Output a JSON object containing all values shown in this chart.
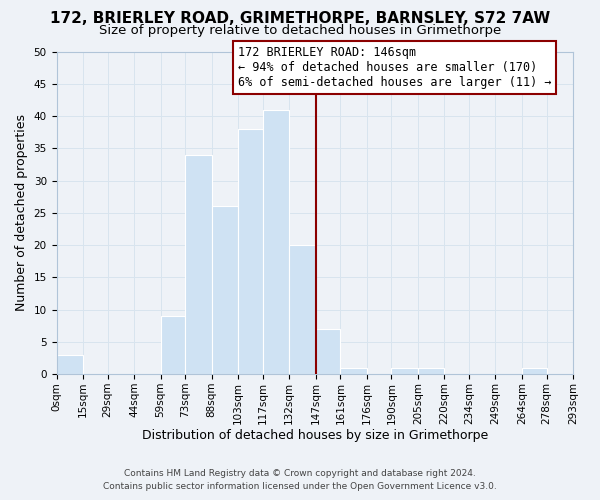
{
  "title": "172, BRIERLEY ROAD, GRIMETHORPE, BARNSLEY, S72 7AW",
  "subtitle": "Size of property relative to detached houses in Grimethorpe",
  "xlabel": "Distribution of detached houses by size in Grimethorpe",
  "ylabel": "Number of detached properties",
  "footer_line1": "Contains HM Land Registry data © Crown copyright and database right 2024.",
  "footer_line2": "Contains public sector information licensed under the Open Government Licence v3.0.",
  "bin_edges": [
    0,
    15,
    29,
    44,
    59,
    73,
    88,
    103,
    117,
    132,
    147,
    161,
    176,
    190,
    205,
    220,
    234,
    249,
    264,
    278,
    293
  ],
  "bin_labels": [
    "0sqm",
    "15sqm",
    "29sqm",
    "44sqm",
    "59sqm",
    "73sqm",
    "88sqm",
    "103sqm",
    "117sqm",
    "132sqm",
    "147sqm",
    "161sqm",
    "176sqm",
    "190sqm",
    "205sqm",
    "220sqm",
    "234sqm",
    "249sqm",
    "264sqm",
    "278sqm",
    "293sqm"
  ],
  "counts": [
    3,
    0,
    0,
    0,
    9,
    34,
    26,
    38,
    41,
    20,
    7,
    1,
    0,
    1,
    1,
    0,
    0,
    0,
    1,
    0
  ],
  "bar_color": "#cfe2f3",
  "bar_edgecolor": "#ffffff",
  "property_line_x": 147,
  "property_line_color": "#8b0000",
  "annotation_title": "172 BRIERLEY ROAD: 146sqm",
  "annotation_line1": "← 94% of detached houses are smaller (170)",
  "annotation_line2": "6% of semi-detached houses are larger (11) →",
  "annotation_box_edgecolor": "#8b0000",
  "ylim": [
    0,
    50
  ],
  "yticks": [
    0,
    5,
    10,
    15,
    20,
    25,
    30,
    35,
    40,
    45,
    50
  ],
  "grid_color": "#d8e4ee",
  "background_color": "#eef2f7",
  "title_fontsize": 11,
  "subtitle_fontsize": 9.5,
  "xlabel_fontsize": 9,
  "ylabel_fontsize": 9,
  "tick_fontsize": 7.5,
  "annotation_fontsize": 8.5,
  "footer_fontsize": 6.5
}
